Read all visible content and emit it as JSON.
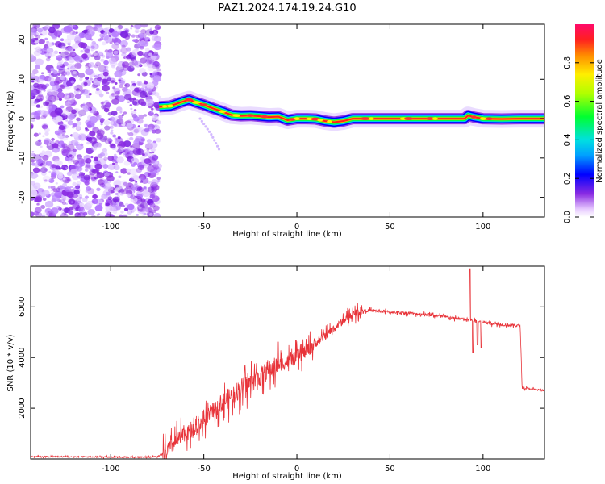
{
  "title": "PAZ1.2024.174.19.24.G10",
  "chart_data": [
    {
      "type": "heatmap",
      "xlabel": "Height of straight line (km)",
      "ylabel": "Frequency (Hz)",
      "xlim": [
        -143,
        133
      ],
      "ylim": [
        -25,
        24
      ],
      "xticks": [
        -100,
        -50,
        0,
        50,
        100
      ],
      "yticks": [
        -20,
        -10,
        0,
        10,
        20
      ],
      "colorbar": {
        "label": "Normalized spectral amplitude",
        "ticks": [
          0.0,
          0.2,
          0.4,
          0.6,
          0.8
        ],
        "range": [
          0,
          1
        ]
      },
      "noise_region": {
        "x": [
          -143,
          -74
        ],
        "y": [
          -25,
          24
        ]
      },
      "ridge": [
        [
          -74,
          3
        ],
        [
          -68,
          3.2
        ],
        [
          -62,
          4.2
        ],
        [
          -58,
          4.8
        ],
        [
          -54,
          4.1
        ],
        [
          -50,
          3.5
        ],
        [
          -45,
          2.6
        ],
        [
          -40,
          1.8
        ],
        [
          -35,
          0.9
        ],
        [
          -30,
          0.7
        ],
        [
          -25,
          0.8
        ],
        [
          -20,
          0.6
        ],
        [
          -15,
          0.4
        ],
        [
          -10,
          0.5
        ],
        [
          -5,
          -0.4
        ],
        [
          0,
          0
        ],
        [
          5,
          0
        ],
        [
          10,
          -0.1
        ],
        [
          15,
          -0.6
        ],
        [
          20,
          -0.9
        ],
        [
          25,
          -0.6
        ],
        [
          30,
          0
        ],
        [
          40,
          0
        ],
        [
          60,
          0
        ],
        [
          80,
          0
        ],
        [
          90,
          0
        ],
        [
          92,
          0.8
        ],
        [
          95,
          0.4
        ],
        [
          100,
          0
        ],
        [
          110,
          -0.1
        ],
        [
          120,
          0
        ],
        [
          133,
          0
        ]
      ],
      "side_streak": [
        [
          -52,
          0
        ],
        [
          -46,
          -4
        ],
        [
          -41,
          -8.5
        ]
      ]
    },
    {
      "type": "line",
      "xlabel": "Height of straight line (km)",
      "ylabel": "SNR (10 * v/v)",
      "xlim": [
        -143,
        133
      ],
      "ylim": [
        0,
        7600
      ],
      "xticks": [
        -100,
        -50,
        0,
        50,
        100
      ],
      "yticks": [
        2000,
        4000,
        6000
      ],
      "line_color": "#e8343a",
      "trend": [
        [
          -143,
          100
        ],
        [
          -110,
          80
        ],
        [
          -90,
          70
        ],
        [
          -75,
          90
        ],
        [
          -70,
          250
        ],
        [
          -65,
          700
        ],
        [
          -60,
          1000
        ],
        [
          -55,
          1100
        ],
        [
          -50,
          1500
        ],
        [
          -45,
          1900
        ],
        [
          -40,
          2200
        ],
        [
          -35,
          2500
        ],
        [
          -30,
          2800
        ],
        [
          -25,
          3000
        ],
        [
          -20,
          3250
        ],
        [
          -15,
          3500
        ],
        [
          -10,
          3700
        ],
        [
          -5,
          3850
        ],
        [
          0,
          4000
        ],
        [
          5,
          4250
        ],
        [
          10,
          4550
        ],
        [
          15,
          4850
        ],
        [
          20,
          5150
        ],
        [
          25,
          5450
        ],
        [
          30,
          5700
        ],
        [
          35,
          5850
        ],
        [
          40,
          5850
        ],
        [
          50,
          5800
        ],
        [
          60,
          5750
        ],
        [
          70,
          5700
        ],
        [
          80,
          5600
        ],
        [
          90,
          5500
        ],
        [
          100,
          5400
        ],
        [
          110,
          5300
        ],
        [
          120,
          5250
        ],
        [
          121,
          2800
        ],
        [
          133,
          2700
        ]
      ],
      "spikes": [
        [
          93,
          7500
        ],
        [
          94.5,
          4200
        ],
        [
          97,
          4500
        ],
        [
          99,
          4400
        ]
      ]
    }
  ]
}
